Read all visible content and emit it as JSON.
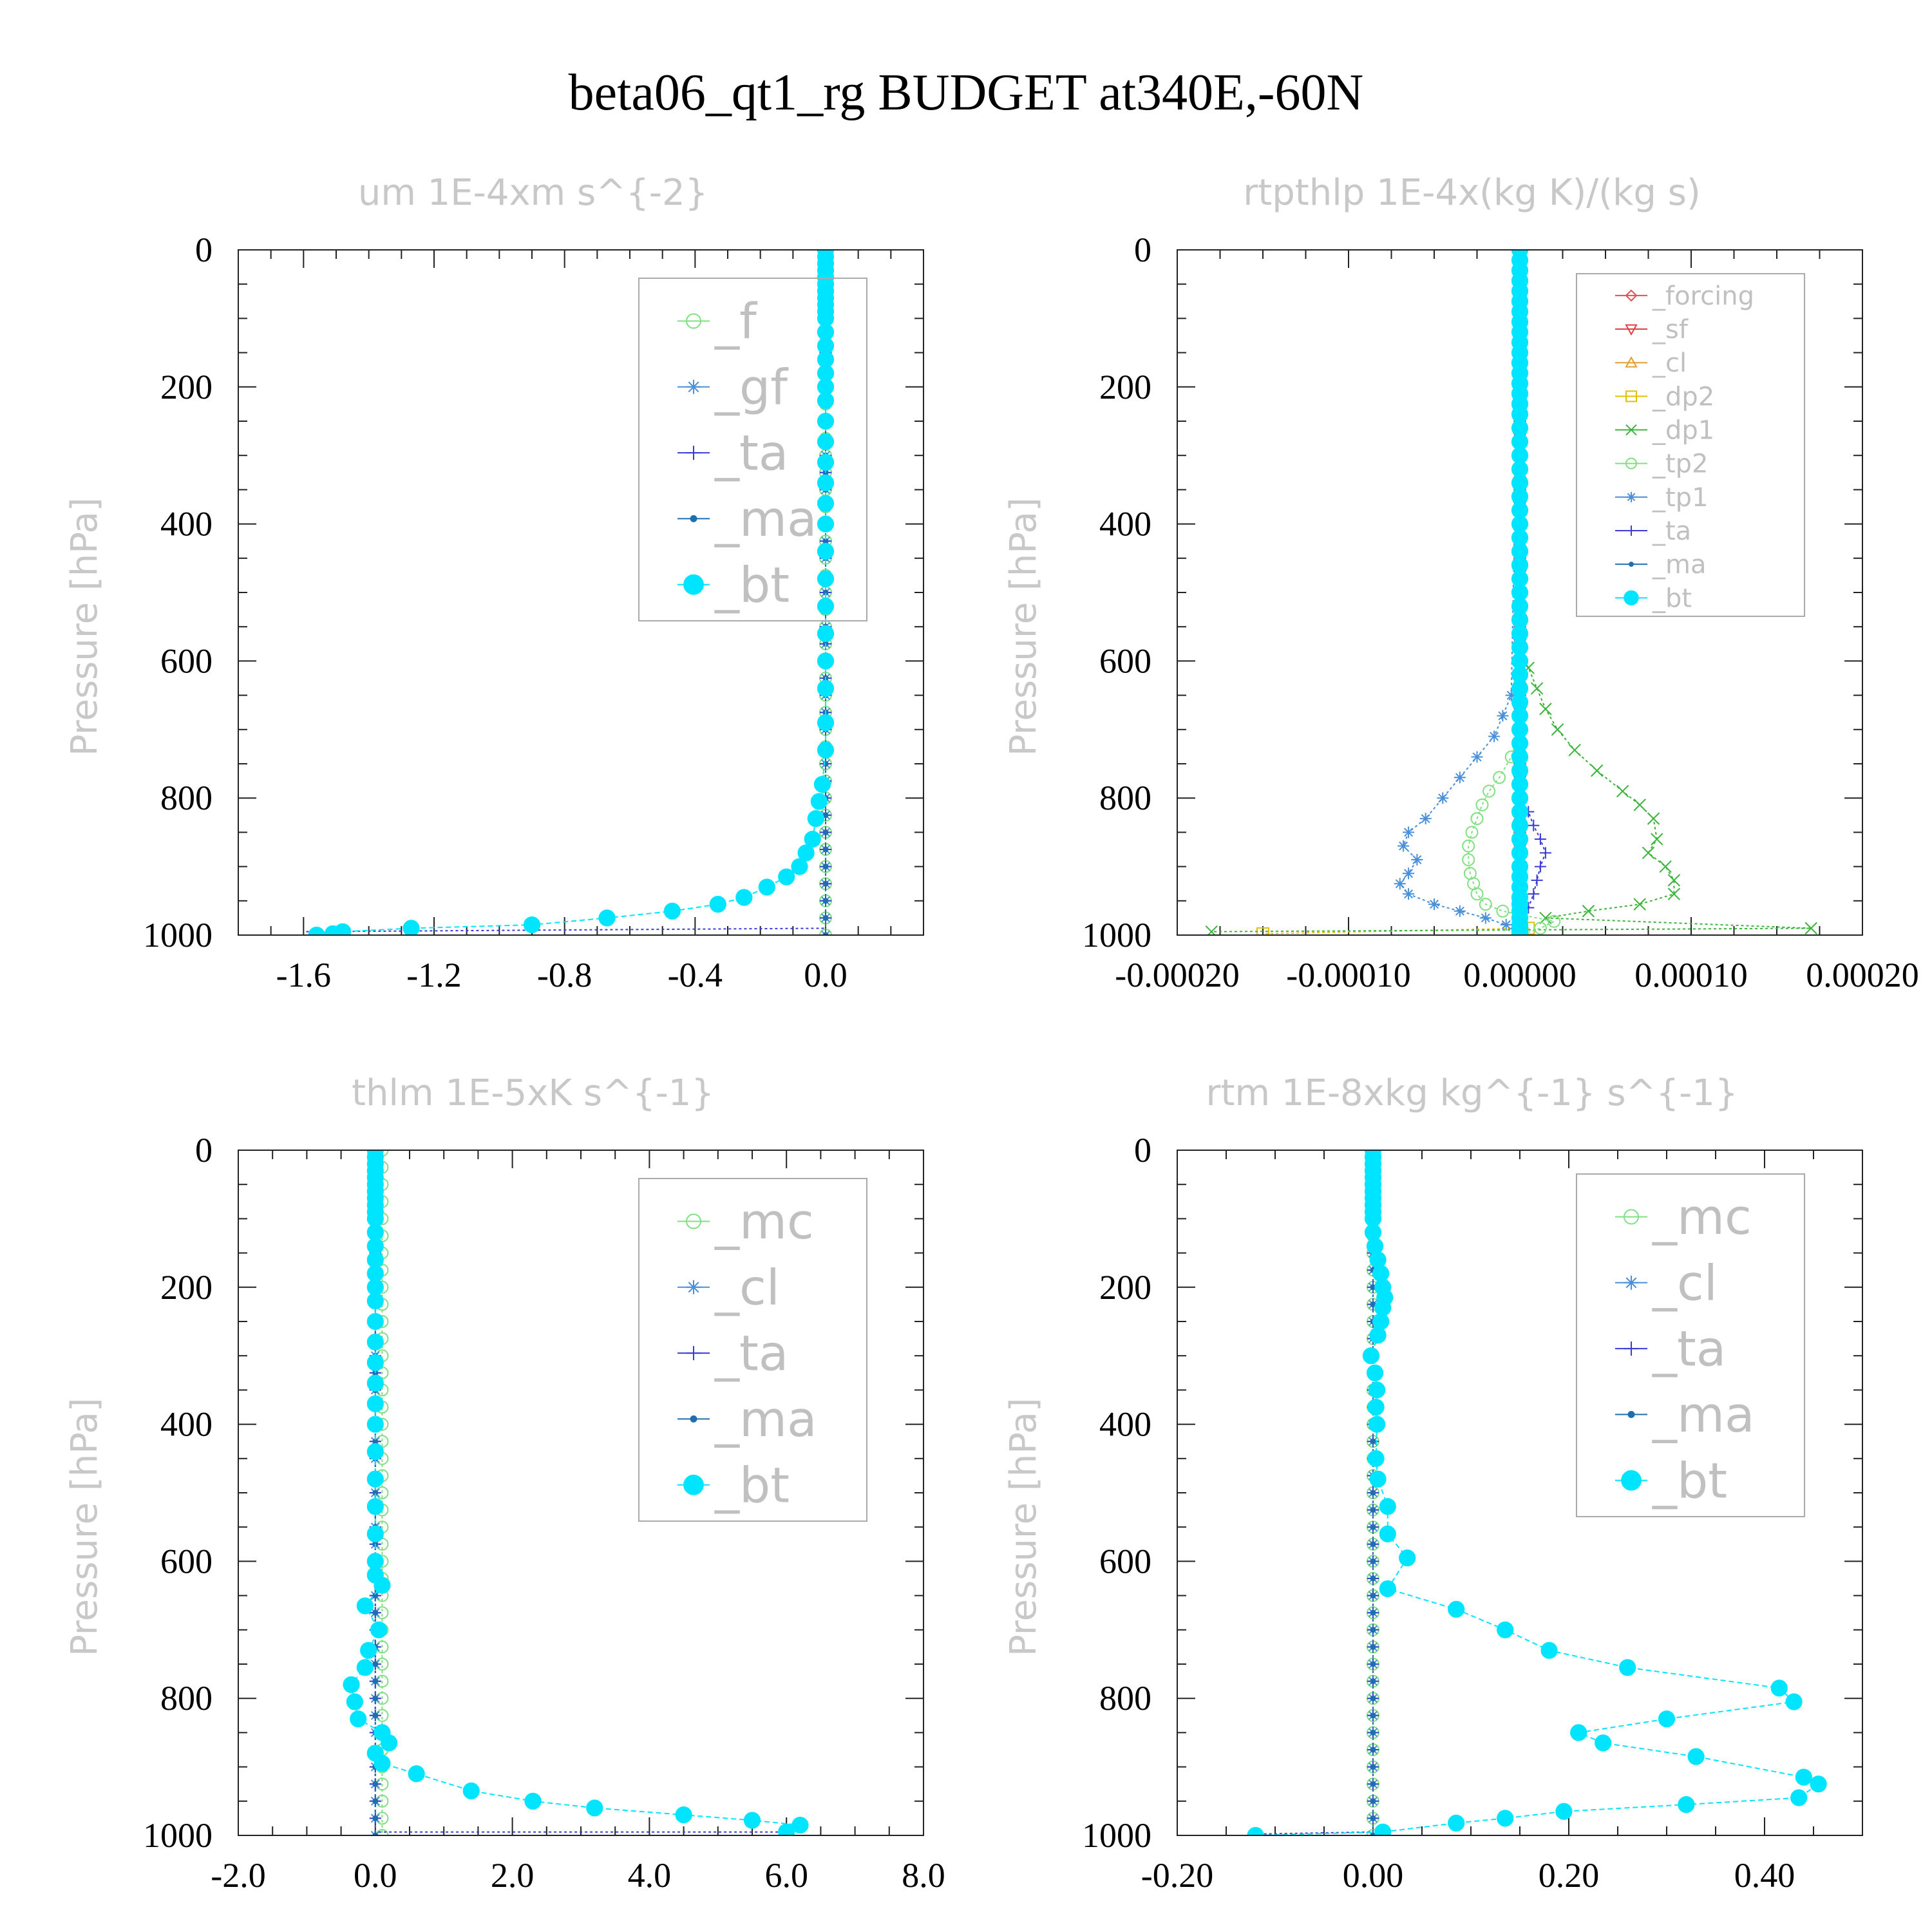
{
  "title": "beta06_qt1_rg  BUDGET at340E,-60N",
  "chart_data": [
    {
      "type": "line",
      "title": "um  1E-4xm s^{-2}",
      "ylabel": "Pressure [hPa]",
      "ylim": [
        1000,
        0
      ],
      "yticks": [
        "0",
        "200",
        "400",
        "600",
        "800",
        "1000"
      ],
      "xlim": [
        -1.8,
        0.3
      ],
      "xticks": [
        "-1.6",
        "-1.2",
        "-0.8",
        "-0.4",
        "0.0"
      ],
      "xtick_values": [
        -1.6,
        -1.2,
        -0.8,
        -0.4,
        0.0
      ],
      "legend_position": "top-right",
      "series": [
        {
          "name": "_f",
          "color": "#7fe07f",
          "marker": "circle",
          "x": [
            0,
            0
          ],
          "y": [
            0,
            1000
          ]
        },
        {
          "name": "_gf",
          "color": "#4a90d9",
          "marker": "asterisk",
          "x": [
            0,
            0
          ],
          "y": [
            0,
            1000
          ]
        },
        {
          "name": "_ta",
          "color": "#3b3bd6",
          "marker": "plus",
          "x": [
            0,
            0,
            -1.6
          ],
          "y": [
            0,
            990,
            995
          ]
        },
        {
          "name": "_ma",
          "color": "#1f6fb0",
          "marker": "dot",
          "x": [
            0,
            0
          ],
          "y": [
            0,
            1000
          ]
        },
        {
          "name": "_bt",
          "color": "#00e5ff",
          "marker": "bigdot",
          "x": [
            0,
            0,
            0,
            0,
            0,
            0,
            0,
            0,
            0,
            0,
            0,
            0,
            0,
            0,
            0,
            0,
            0,
            0,
            0,
            0,
            0,
            0,
            0,
            0,
            0,
            0,
            0,
            0,
            0,
            0,
            0,
            -0.01,
            -0.02,
            -0.03,
            -0.04,
            -0.06,
            -0.08,
            -0.12,
            -0.18,
            -0.25,
            -0.33,
            -0.47,
            -0.67,
            -0.9,
            -1.27,
            -1.48,
            -1.51,
            -1.56
          ],
          "y": [
            0,
            10,
            20,
            30,
            40,
            50,
            60,
            70,
            80,
            90,
            100,
            120,
            140,
            160,
            180,
            200,
            220,
            250,
            280,
            310,
            340,
            370,
            400,
            440,
            480,
            520,
            560,
            600,
            640,
            690,
            730,
            780,
            805,
            830,
            860,
            880,
            900,
            915,
            930,
            945,
            955,
            965,
            975,
            985,
            990,
            995,
            998,
            1000
          ]
        }
      ]
    },
    {
      "type": "line",
      "title": "rtpthlp  1E-4x(kg K)/(kg s)",
      "ylabel": "Pressure [hPa]",
      "ylim": [
        1000,
        0
      ],
      "yticks": [
        "0",
        "200",
        "400",
        "600",
        "800",
        "1000"
      ],
      "xlim": [
        -0.0002,
        0.0002
      ],
      "xticks": [
        "-0.00020",
        "-0.00010",
        "0.00000",
        "0.00010",
        "0.00020"
      ],
      "xtick_values": [
        -0.0002,
        -0.0001,
        0.0,
        0.0001,
        0.0002
      ],
      "legend_position": "top-right",
      "series": [
        {
          "name": "_forcing",
          "color": "#e05050",
          "marker": "diamond",
          "x": [
            0,
            0
          ],
          "y": [
            0,
            1000
          ]
        },
        {
          "name": "_sf",
          "color": "#e04040",
          "marker": "tri-down",
          "x": [
            0,
            0
          ],
          "y": [
            0,
            1000
          ]
        },
        {
          "name": "_cl",
          "color": "#e0a030",
          "marker": "tri-up",
          "x": [
            0,
            0
          ],
          "y": [
            0,
            1000
          ]
        },
        {
          "name": "_dp2",
          "color": "#e0c000",
          "marker": "square",
          "x": [
            0,
            0,
            5e-06,
            -0.00015
          ],
          "y": [
            0,
            980,
            990,
            998
          ]
        },
        {
          "name": "_dp1",
          "color": "#3cb43c",
          "marker": "cross",
          "x": [
            0,
            0,
            5e-06,
            1e-05,
            1.5e-05,
            2.2e-05,
            3.2e-05,
            4.5e-05,
            6e-05,
            7e-05,
            7.8e-05,
            8e-05,
            7.5e-05,
            8.5e-05,
            9e-05,
            9e-05,
            7e-05,
            4e-05,
            1.5e-05,
            0.00017,
            -0.00018
          ],
          "y": [
            0,
            590,
            610,
            640,
            670,
            700,
            730,
            760,
            790,
            810,
            830,
            860,
            880,
            900,
            920,
            940,
            955,
            965,
            975,
            990,
            995
          ]
        },
        {
          "name": "_tp2",
          "color": "#7fe07f",
          "marker": "circle",
          "x": [
            0,
            0,
            -5e-06,
            -1.2e-05,
            -1.8e-05,
            -2.2e-05,
            -2.5e-05,
            -2.8e-05,
            -3e-05,
            -3e-05,
            -2.9e-05,
            -2.7e-05,
            -2.5e-05,
            -2e-05,
            -1e-05,
            2e-05,
            1.2e-05,
            0
          ],
          "y": [
            0,
            700,
            740,
            770,
            790,
            810,
            830,
            850,
            870,
            890,
            910,
            925,
            940,
            955,
            965,
            980,
            990,
            1000
          ]
        },
        {
          "name": "_tp1",
          "color": "#4a90d9",
          "marker": "asterisk",
          "x": [
            0,
            -5e-06,
            -1e-05,
            -1.5e-05,
            -2.5e-05,
            -3.5e-05,
            -4.5e-05,
            -5.5e-05,
            -6.5e-05,
            -6.8e-05,
            -6e-05,
            -6.5e-05,
            -7e-05,
            -6.5e-05,
            -5e-05,
            -3.5e-05,
            -2e-05,
            -8e-06,
            0
          ],
          "y": [
            0,
            650,
            680,
            710,
            740,
            770,
            800,
            830,
            850,
            870,
            890,
            910,
            925,
            940,
            955,
            965,
            975,
            985,
            1000
          ]
        },
        {
          "name": "_ta",
          "color": "#3b3bd6",
          "marker": "plus",
          "x": [
            0,
            0,
            5e-06,
            8e-06,
            1.2e-05,
            1.5e-05,
            1.2e-05,
            1e-05,
            8e-06,
            5e-06,
            0
          ],
          "y": [
            0,
            800,
            820,
            840,
            860,
            880,
            900,
            920,
            940,
            960,
            1000
          ]
        },
        {
          "name": "_ma",
          "color": "#1f6fb0",
          "marker": "dot",
          "x": [
            0,
            0
          ],
          "y": [
            0,
            1000
          ]
        },
        {
          "name": "_bt",
          "color": "#00e5ff",
          "marker": "bigdot",
          "x": [
            0,
            0,
            0,
            0,
            0,
            0,
            0,
            0,
            0,
            0,
            0,
            0,
            0,
            0,
            0,
            0,
            0,
            0,
            0,
            0,
            0,
            0,
            0,
            0,
            0,
            0,
            0,
            0,
            0,
            0,
            0,
            0,
            0,
            0,
            0,
            0,
            0,
            0,
            0,
            0,
            0,
            0,
            0,
            0,
            0,
            0,
            0,
            0,
            0,
            0,
            0,
            0,
            0,
            0,
            0,
            0,
            0,
            0,
            0,
            0,
            0,
            0
          ],
          "y": [
            0,
            15,
            30,
            45,
            60,
            75,
            90,
            105,
            120,
            135,
            150,
            165,
            180,
            195,
            210,
            225,
            240,
            260,
            280,
            300,
            320,
            340,
            360,
            380,
            400,
            420,
            440,
            460,
            480,
            500,
            520,
            540,
            560,
            580,
            600,
            620,
            640,
            660,
            680,
            700,
            720,
            740,
            760,
            780,
            800,
            820,
            840,
            860,
            880,
            900,
            915,
            930,
            945,
            955,
            965,
            975,
            985,
            990,
            994,
            997,
            999,
            1000
          ]
        }
      ]
    },
    {
      "type": "line",
      "title": "thlm  1E-5xK s^{-1}",
      "ylabel": "Pressure [hPa]",
      "ylim": [
        1000,
        0
      ],
      "yticks": [
        "0",
        "200",
        "400",
        "600",
        "800",
        "1000"
      ],
      "xlim": [
        -2.0,
        8.0
      ],
      "xticks": [
        "-2.0",
        "0.0",
        "2.0",
        "4.0",
        "6.0",
        "8.0"
      ],
      "xtick_values": [
        -2.0,
        0.0,
        2.0,
        4.0,
        6.0,
        8.0
      ],
      "legend_position": "top-right",
      "series": [
        {
          "name": "_mc",
          "color": "#7fe07f",
          "marker": "circle",
          "x": [
            0.1,
            0.1
          ],
          "y": [
            0,
            1000
          ]
        },
        {
          "name": "_cl",
          "color": "#4a90d9",
          "marker": "asterisk",
          "x": [
            0,
            0
          ],
          "y": [
            0,
            1000
          ]
        },
        {
          "name": "_ta",
          "color": "#3b3bd6",
          "marker": "plus",
          "x": [
            0,
            0,
            6.0
          ],
          "y": [
            0,
            995,
            995
          ]
        },
        {
          "name": "_ma",
          "color": "#1f6fb0",
          "marker": "dot",
          "x": [
            0,
            0
          ],
          "y": [
            0,
            1000
          ]
        },
        {
          "name": "_bt",
          "color": "#00e5ff",
          "marker": "bigdot",
          "x": [
            0,
            0,
            0,
            0,
            0,
            0,
            0,
            0,
            0,
            0,
            0,
            0,
            0,
            0,
            0,
            0,
            0,
            0,
            0,
            0,
            0,
            0,
            0,
            0,
            0,
            0,
            0,
            0,
            0,
            0.1,
            -0.15,
            0.05,
            -0.1,
            -0.15,
            -0.35,
            -0.3,
            -0.25,
            0.1,
            0.2,
            0.0,
            0.1,
            0.6,
            1.4,
            2.3,
            3.2,
            4.5,
            5.5,
            6.2,
            6.0
          ],
          "y": [
            0,
            10,
            20,
            30,
            40,
            50,
            60,
            70,
            80,
            90,
            100,
            120,
            140,
            160,
            180,
            200,
            220,
            250,
            280,
            310,
            340,
            370,
            400,
            440,
            480,
            520,
            560,
            600,
            620,
            635,
            665,
            700,
            730,
            755,
            780,
            805,
            830,
            850,
            865,
            880,
            895,
            910,
            935,
            950,
            960,
            970,
            978,
            985,
            995
          ]
        }
      ]
    },
    {
      "type": "line",
      "title": "rtm  1E-8xkg kg^{-1} s^{-1}",
      "ylabel": "Pressure [hPa]",
      "ylim": [
        1000,
        0
      ],
      "yticks": [
        "0",
        "200",
        "400",
        "600",
        "800",
        "1000"
      ],
      "xlim": [
        -0.2,
        0.5
      ],
      "xticks": [
        "-0.20",
        "0.00",
        "0.20",
        "0.40"
      ],
      "xtick_values": [
        -0.2,
        0.0,
        0.2,
        0.4
      ],
      "legend_position": "top-right",
      "series": [
        {
          "name": "_mc",
          "color": "#7fe07f",
          "marker": "circle",
          "x": [
            0,
            0
          ],
          "y": [
            0,
            1000
          ]
        },
        {
          "name": "_cl",
          "color": "#4a90d9",
          "marker": "asterisk",
          "x": [
            0,
            0
          ],
          "y": [
            0,
            1000
          ]
        },
        {
          "name": "_ta",
          "color": "#3b3bd6",
          "marker": "plus",
          "x": [
            0,
            0,
            -0.12
          ],
          "y": [
            0,
            995,
            998
          ]
        },
        {
          "name": "_ma",
          "color": "#1f6fb0",
          "marker": "dot",
          "x": [
            0,
            0
          ],
          "y": [
            0,
            1000
          ]
        },
        {
          "name": "_bt",
          "color": "#00e5ff",
          "marker": "bigdot",
          "x": [
            0,
            0,
            0,
            0,
            0,
            0,
            0,
            0,
            0,
            0,
            0,
            0,
            0.002,
            0.005,
            0.008,
            0.01,
            0.012,
            0.01,
            0.008,
            0.005,
            -0.002,
            0.002,
            0.004,
            0.003,
            0.004,
            0.003,
            0.005,
            0.015,
            0.015,
            0.035,
            0.015,
            0.085,
            0.135,
            0.18,
            0.26,
            0.415,
            0.43,
            0.3,
            0.21,
            0.235,
            0.33,
            0.44,
            0.455,
            0.435,
            0.32,
            0.195,
            0.135,
            0.085,
            0.01,
            -0.12
          ],
          "y": [
            0,
            10,
            20,
            30,
            40,
            50,
            60,
            70,
            80,
            90,
            100,
            120,
            140,
            160,
            180,
            200,
            215,
            230,
            250,
            270,
            300,
            325,
            350,
            375,
            400,
            450,
            480,
            520,
            560,
            595,
            640,
            670,
            700,
            730,
            755,
            785,
            805,
            830,
            850,
            865,
            885,
            915,
            925,
            945,
            955,
            965,
            975,
            982,
            995,
            1000
          ]
        }
      ]
    }
  ]
}
